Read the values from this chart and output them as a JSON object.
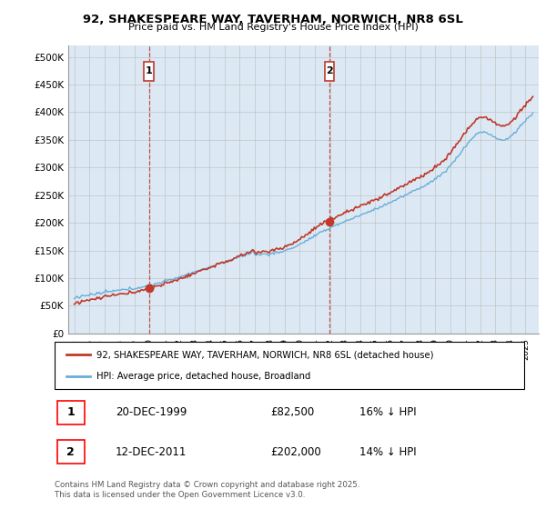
{
  "title": "92, SHAKESPEARE WAY, TAVERHAM, NORWICH, NR8 6SL",
  "subtitle": "Price paid vs. HM Land Registry's House Price Index (HPI)",
  "ylim": [
    0,
    520000
  ],
  "yticks": [
    0,
    50000,
    100000,
    150000,
    200000,
    250000,
    300000,
    350000,
    400000,
    450000,
    500000
  ],
  "ytick_labels": [
    "£0",
    "£50K",
    "£100K",
    "£150K",
    "£200K",
    "£250K",
    "£300K",
    "£350K",
    "£400K",
    "£450K",
    "£500K"
  ],
  "hpi_color": "#6baed6",
  "price_color": "#c0392b",
  "plot_bg_color": "#dce9f5",
  "sale1_year": 1999.96,
  "sale1_price": 82500,
  "sale1_hpi_pct": "16% ↓ HPI",
  "sale1_date": "20-DEC-1999",
  "sale2_year": 2011.96,
  "sale2_price": 202000,
  "sale2_hpi_pct": "14% ↓ HPI",
  "sale2_date": "12-DEC-2011",
  "legend_label1": "92, SHAKESPEARE WAY, TAVERHAM, NORWICH, NR8 6SL (detached house)",
  "legend_label2": "HPI: Average price, detached house, Broadland",
  "footer": "Contains HM Land Registry data © Crown copyright and database right 2025.\nThis data is licensed under the Open Government Licence v3.0.",
  "background_color": "#ffffff",
  "grid_color": "#bbbbbb"
}
